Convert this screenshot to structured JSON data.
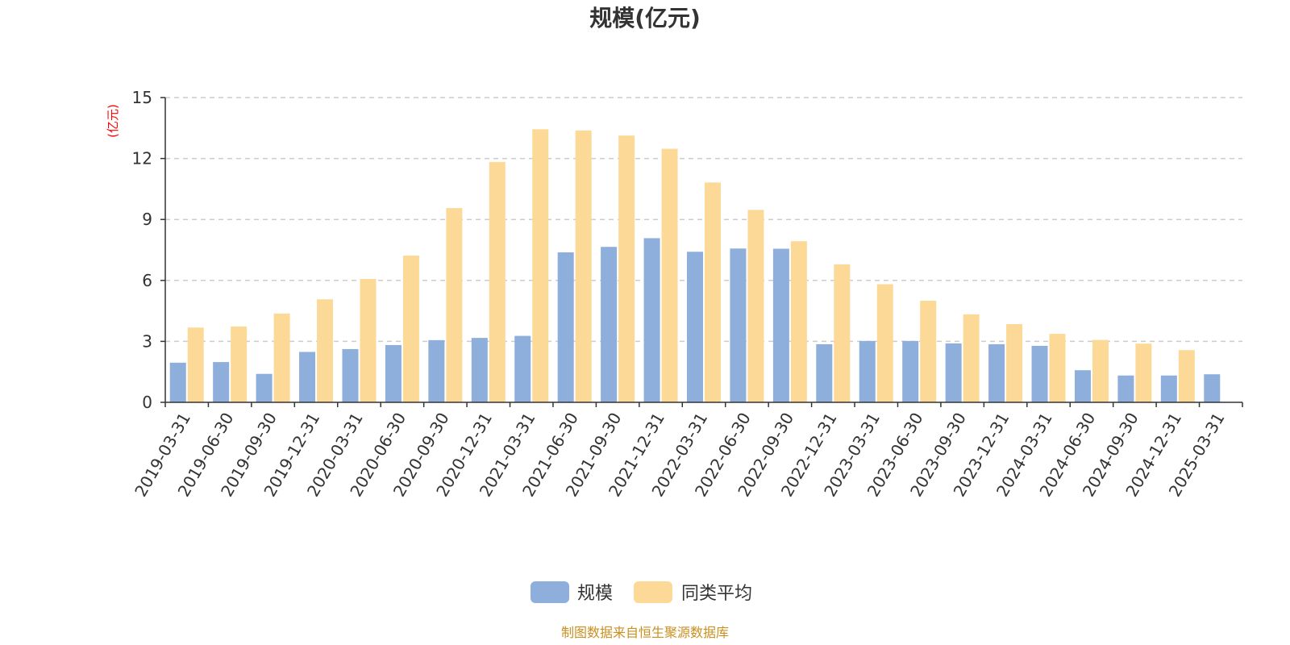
{
  "chart_data": {
    "type": "bar",
    "title": "规模(亿元)",
    "ylabel": "(亿元)",
    "xlabel": "",
    "ylim": [
      0,
      15
    ],
    "yticks": [
      0,
      3,
      6,
      9,
      12,
      15
    ],
    "grid": true,
    "legend_position": "bottom-center",
    "categories": [
      "2019-03-31",
      "2019-06-30",
      "2019-09-30",
      "2019-12-31",
      "2020-03-31",
      "2020-06-30",
      "2020-09-30",
      "2020-12-31",
      "2021-03-31",
      "2021-06-30",
      "2021-09-30",
      "2021-12-31",
      "2022-03-31",
      "2022-06-30",
      "2022-09-30",
      "2022-12-31",
      "2023-03-31",
      "2023-06-30",
      "2023-09-30",
      "2023-12-31",
      "2024-03-31",
      "2024-06-30",
      "2024-09-30",
      "2024-12-31",
      "2025-03-31"
    ],
    "series": [
      {
        "name": "规模",
        "color": "#8eaedb",
        "values": [
          1.95,
          1.98,
          1.4,
          2.48,
          2.62,
          2.82,
          3.06,
          3.17,
          3.27,
          7.38,
          7.65,
          8.08,
          7.41,
          7.57,
          7.56,
          2.86,
          3.02,
          3.02,
          2.9,
          2.86,
          2.78,
          1.58,
          1.32,
          1.32,
          1.38
        ]
      },
      {
        "name": "同类平均",
        "color": "#fdd998",
        "values": [
          3.68,
          3.73,
          4.37,
          5.07,
          6.07,
          7.22,
          9.56,
          11.83,
          13.44,
          13.38,
          13.13,
          12.48,
          10.82,
          9.47,
          7.93,
          6.79,
          5.81,
          5.0,
          4.33,
          3.85,
          3.37,
          3.07,
          2.89,
          2.57,
          null
        ]
      }
    ]
  },
  "styles": {
    "title_color": "#333333",
    "unit_color": "#ff0000",
    "axis_color": "#333333",
    "grid_color": "#cccccc",
    "source_color": "#c9901f"
  },
  "footer": {
    "source": "制图数据来自恒生聚源数据库"
  }
}
